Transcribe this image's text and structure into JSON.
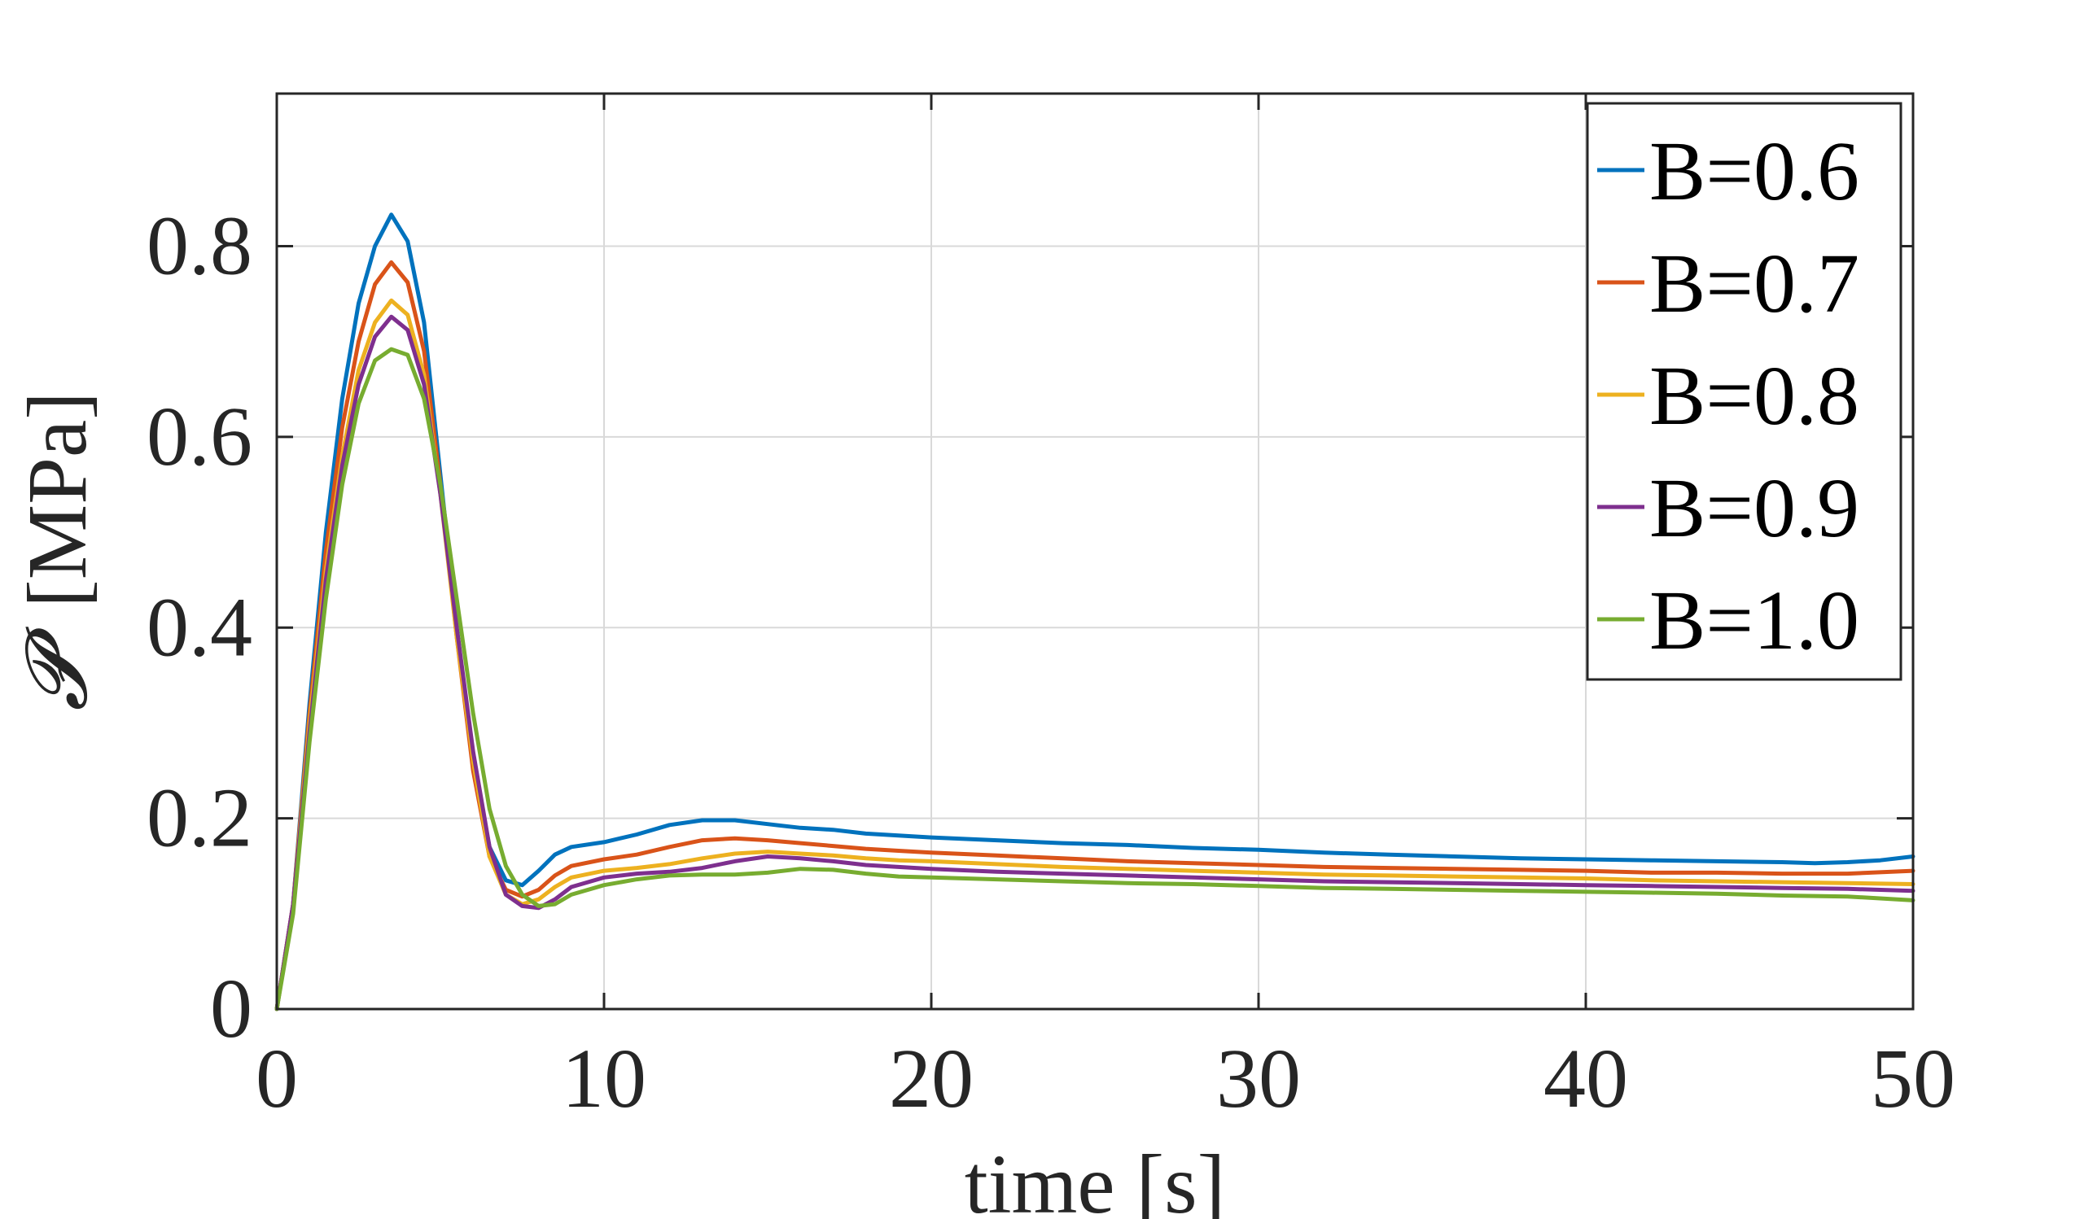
{
  "chart_data": {
    "type": "line",
    "title": "",
    "xlabel": "time [s]",
    "ylabel_symbol": "𝓟",
    "ylabel_unit": "[MPa]",
    "xlim": [
      0,
      50
    ],
    "ylim": [
      0,
      0.96
    ],
    "xticks": [
      0,
      10,
      20,
      30,
      40,
      50
    ],
    "xtick_labels": [
      "0",
      "10",
      "20",
      "30",
      "40",
      "50"
    ],
    "yticks": [
      0,
      0.2,
      0.4,
      0.6,
      0.8
    ],
    "ytick_labels": [
      "0",
      "0.2",
      "0.4",
      "0.6",
      "0.8"
    ],
    "grid": true,
    "legend_position": "top-right",
    "series": [
      {
        "name": "B=0.6",
        "color": "#0072BD",
        "points": [
          [
            0,
            0
          ],
          [
            0.5,
            0.11
          ],
          [
            1,
            0.32
          ],
          [
            1.5,
            0.5
          ],
          [
            2,
            0.64
          ],
          [
            2.5,
            0.74
          ],
          [
            3,
            0.8
          ],
          [
            3.5,
            0.833
          ],
          [
            4,
            0.805
          ],
          [
            4.5,
            0.72
          ],
          [
            5,
            0.56
          ],
          [
            5.5,
            0.4
          ],
          [
            6,
            0.26
          ],
          [
            6.5,
            0.17
          ],
          [
            7,
            0.135
          ],
          [
            7.5,
            0.13
          ],
          [
            8,
            0.145
          ],
          [
            8.5,
            0.162
          ],
          [
            9,
            0.17
          ],
          [
            10,
            0.175
          ],
          [
            11,
            0.183
          ],
          [
            12,
            0.193
          ],
          [
            13,
            0.198
          ],
          [
            14,
            0.198
          ],
          [
            15,
            0.194
          ],
          [
            16,
            0.19
          ],
          [
            17,
            0.188
          ],
          [
            18,
            0.184
          ],
          [
            19,
            0.182
          ],
          [
            20,
            0.18
          ],
          [
            22,
            0.177
          ],
          [
            24,
            0.174
          ],
          [
            26,
            0.172
          ],
          [
            28,
            0.169
          ],
          [
            30,
            0.167
          ],
          [
            32,
            0.164
          ],
          [
            34,
            0.162
          ],
          [
            36,
            0.16
          ],
          [
            38,
            0.158
          ],
          [
            40,
            0.157
          ],
          [
            42,
            0.156
          ],
          [
            44,
            0.155
          ],
          [
            46,
            0.154
          ],
          [
            47,
            0.153
          ],
          [
            48,
            0.154
          ],
          [
            49,
            0.156
          ],
          [
            50,
            0.16
          ]
        ]
      },
      {
        "name": "B=0.7",
        "color": "#D95319",
        "points": [
          [
            0,
            0
          ],
          [
            0.5,
            0.11
          ],
          [
            1,
            0.31
          ],
          [
            1.5,
            0.48
          ],
          [
            2,
            0.61
          ],
          [
            2.5,
            0.7
          ],
          [
            3,
            0.76
          ],
          [
            3.5,
            0.783
          ],
          [
            4,
            0.762
          ],
          [
            4.5,
            0.69
          ],
          [
            5,
            0.55
          ],
          [
            5.5,
            0.39
          ],
          [
            6,
            0.25
          ],
          [
            6.5,
            0.16
          ],
          [
            7,
            0.125
          ],
          [
            7.5,
            0.118
          ],
          [
            8,
            0.125
          ],
          [
            8.5,
            0.14
          ],
          [
            9,
            0.15
          ],
          [
            10,
            0.157
          ],
          [
            11,
            0.162
          ],
          [
            12,
            0.17
          ],
          [
            13,
            0.177
          ],
          [
            14,
            0.179
          ],
          [
            15,
            0.177
          ],
          [
            16,
            0.174
          ],
          [
            17,
            0.171
          ],
          [
            18,
            0.168
          ],
          [
            19,
            0.166
          ],
          [
            20,
            0.164
          ],
          [
            22,
            0.161
          ],
          [
            24,
            0.158
          ],
          [
            26,
            0.155
          ],
          [
            28,
            0.153
          ],
          [
            30,
            0.151
          ],
          [
            32,
            0.149
          ],
          [
            34,
            0.148
          ],
          [
            36,
            0.147
          ],
          [
            38,
            0.146
          ],
          [
            40,
            0.145
          ],
          [
            42,
            0.143
          ],
          [
            44,
            0.143
          ],
          [
            46,
            0.142
          ],
          [
            48,
            0.142
          ],
          [
            50,
            0.145
          ]
        ]
      },
      {
        "name": "B=0.8",
        "color": "#EDB120",
        "points": [
          [
            0,
            0
          ],
          [
            0.5,
            0.11
          ],
          [
            1,
            0.3
          ],
          [
            1.5,
            0.46
          ],
          [
            2,
            0.58
          ],
          [
            2.5,
            0.67
          ],
          [
            3,
            0.72
          ],
          [
            3.5,
            0.743
          ],
          [
            4,
            0.728
          ],
          [
            4.5,
            0.665
          ],
          [
            5,
            0.54
          ],
          [
            5.5,
            0.39
          ],
          [
            6,
            0.26
          ],
          [
            6.5,
            0.16
          ],
          [
            7,
            0.12
          ],
          [
            7.5,
            0.11
          ],
          [
            8,
            0.115
          ],
          [
            8.5,
            0.128
          ],
          [
            9,
            0.138
          ],
          [
            10,
            0.145
          ],
          [
            11,
            0.148
          ],
          [
            12,
            0.152
          ],
          [
            13,
            0.158
          ],
          [
            14,
            0.163
          ],
          [
            15,
            0.165
          ],
          [
            16,
            0.163
          ],
          [
            17,
            0.161
          ],
          [
            18,
            0.158
          ],
          [
            19,
            0.156
          ],
          [
            20,
            0.155
          ],
          [
            22,
            0.152
          ],
          [
            24,
            0.149
          ],
          [
            26,
            0.147
          ],
          [
            28,
            0.145
          ],
          [
            30,
            0.143
          ],
          [
            32,
            0.141
          ],
          [
            34,
            0.14
          ],
          [
            36,
            0.139
          ],
          [
            38,
            0.138
          ],
          [
            40,
            0.137
          ],
          [
            42,
            0.135
          ],
          [
            44,
            0.134
          ],
          [
            46,
            0.133
          ],
          [
            48,
            0.132
          ],
          [
            50,
            0.131
          ]
        ]
      },
      {
        "name": "B=0.9",
        "color": "#7E2F8E",
        "points": [
          [
            0,
            0
          ],
          [
            0.5,
            0.11
          ],
          [
            1,
            0.29
          ],
          [
            1.5,
            0.45
          ],
          [
            2,
            0.57
          ],
          [
            2.5,
            0.655
          ],
          [
            3,
            0.705
          ],
          [
            3.5,
            0.726
          ],
          [
            4,
            0.712
          ],
          [
            4.5,
            0.655
          ],
          [
            5,
            0.54
          ],
          [
            5.5,
            0.4
          ],
          [
            6,
            0.27
          ],
          [
            6.5,
            0.17
          ],
          [
            7,
            0.12
          ],
          [
            7.5,
            0.108
          ],
          [
            8,
            0.106
          ],
          [
            8.5,
            0.115
          ],
          [
            9,
            0.128
          ],
          [
            10,
            0.138
          ],
          [
            11,
            0.142
          ],
          [
            12,
            0.144
          ],
          [
            13,
            0.148
          ],
          [
            14,
            0.155
          ],
          [
            15,
            0.16
          ],
          [
            16,
            0.158
          ],
          [
            17,
            0.155
          ],
          [
            18,
            0.151
          ],
          [
            19,
            0.149
          ],
          [
            20,
            0.147
          ],
          [
            22,
            0.144
          ],
          [
            24,
            0.142
          ],
          [
            26,
            0.14
          ],
          [
            28,
            0.138
          ],
          [
            30,
            0.136
          ],
          [
            32,
            0.134
          ],
          [
            34,
            0.133
          ],
          [
            36,
            0.132
          ],
          [
            38,
            0.131
          ],
          [
            40,
            0.13
          ],
          [
            42,
            0.129
          ],
          [
            44,
            0.128
          ],
          [
            46,
            0.127
          ],
          [
            48,
            0.126
          ],
          [
            50,
            0.124
          ]
        ]
      },
      {
        "name": "B=1.0",
        "color": "#77AC30",
        "points": [
          [
            0,
            0
          ],
          [
            0.5,
            0.1
          ],
          [
            1,
            0.28
          ],
          [
            1.5,
            0.43
          ],
          [
            2,
            0.55
          ],
          [
            2.5,
            0.635
          ],
          [
            3,
            0.68
          ],
          [
            3.5,
            0.692
          ],
          [
            4,
            0.686
          ],
          [
            4.5,
            0.64
          ],
          [
            5,
            0.55
          ],
          [
            5.5,
            0.43
          ],
          [
            6,
            0.31
          ],
          [
            6.5,
            0.21
          ],
          [
            7,
            0.15
          ],
          [
            7.5,
            0.12
          ],
          [
            8,
            0.108
          ],
          [
            8.5,
            0.11
          ],
          [
            9,
            0.12
          ],
          [
            10,
            0.13
          ],
          [
            11,
            0.136
          ],
          [
            12,
            0.14
          ],
          [
            13,
            0.141
          ],
          [
            14,
            0.141
          ],
          [
            15,
            0.143
          ],
          [
            16,
            0.147
          ],
          [
            17,
            0.146
          ],
          [
            18,
            0.142
          ],
          [
            19,
            0.139
          ],
          [
            20,
            0.138
          ],
          [
            22,
            0.136
          ],
          [
            24,
            0.134
          ],
          [
            26,
            0.132
          ],
          [
            28,
            0.131
          ],
          [
            30,
            0.129
          ],
          [
            32,
            0.127
          ],
          [
            34,
            0.126
          ],
          [
            36,
            0.125
          ],
          [
            38,
            0.124
          ],
          [
            40,
            0.123
          ],
          [
            42,
            0.122
          ],
          [
            44,
            0.121
          ],
          [
            46,
            0.119
          ],
          [
            48,
            0.118
          ],
          [
            50,
            0.114
          ]
        ]
      }
    ]
  }
}
